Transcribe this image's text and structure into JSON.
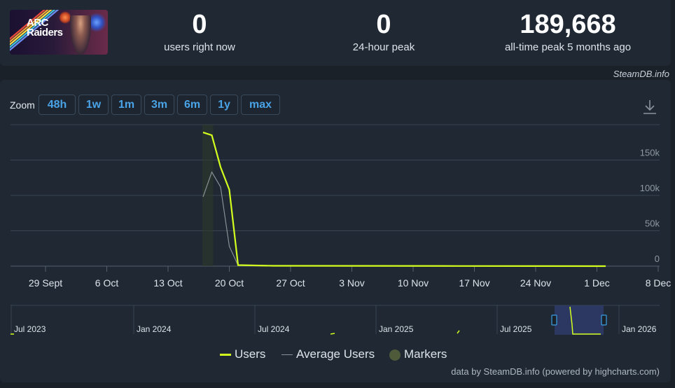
{
  "game": {
    "logo_text_line1": "ARC",
    "logo_text_line2": "Raiders"
  },
  "stats": [
    {
      "value": "0",
      "label": "users right now"
    },
    {
      "value": "0",
      "label": "24-hour peak"
    },
    {
      "value": "189,668",
      "label": "all-time peak 5 months ago"
    }
  ],
  "credit": "SteamDB.info",
  "zoom": {
    "label": "Zoom",
    "buttons": [
      "48h",
      "1w",
      "1m",
      "3m",
      "6m",
      "1y",
      "max"
    ]
  },
  "download_icon": "download-icon",
  "legend": {
    "users": "Users",
    "average": "Average Users",
    "markers": "Markers"
  },
  "footer": "data by SteamDB.info (powered by highcharts.com)",
  "colors": {
    "users": "#d4ff1e",
    "average": "#8a8f96",
    "markers": "#4f5a3a",
    "button_text": "#4aa3e6"
  },
  "chart_data": {
    "type": "line",
    "x_tick_labels": [
      "29 Sept",
      "6 Oct",
      "13 Oct",
      "20 Oct",
      "27 Oct",
      "3 Nov",
      "10 Nov",
      "17 Nov",
      "24 Nov",
      "1 Dec",
      "8 Dec"
    ],
    "y_tick_labels": [
      "0",
      "50k",
      "100k",
      "150k"
    ],
    "ylim": [
      0,
      200000
    ],
    "grid": true,
    "series": [
      {
        "name": "Users",
        "x": [
          "2025-10-17",
          "2025-10-18",
          "2025-10-19",
          "2025-10-20",
          "2025-10-21",
          "2025-10-25",
          "2025-11-15",
          "2025-12-02"
        ],
        "values": [
          189000,
          185000,
          140000,
          108000,
          1500,
          500,
          200,
          0
        ]
      },
      {
        "name": "Average Users",
        "x": [
          "2025-10-17",
          "2025-10-18",
          "2025-10-19",
          "2025-10-20",
          "2025-10-21",
          "2025-10-25"
        ],
        "values": [
          98000,
          133000,
          112000,
          28000,
          1200,
          300
        ]
      }
    ],
    "navigator_tick_labels": [
      "Jul 2023",
      "Jan 2024",
      "Jul 2024",
      "Jan 2025",
      "Jul 2025",
      "Jan 2026"
    ],
    "legend_position": "bottom"
  }
}
